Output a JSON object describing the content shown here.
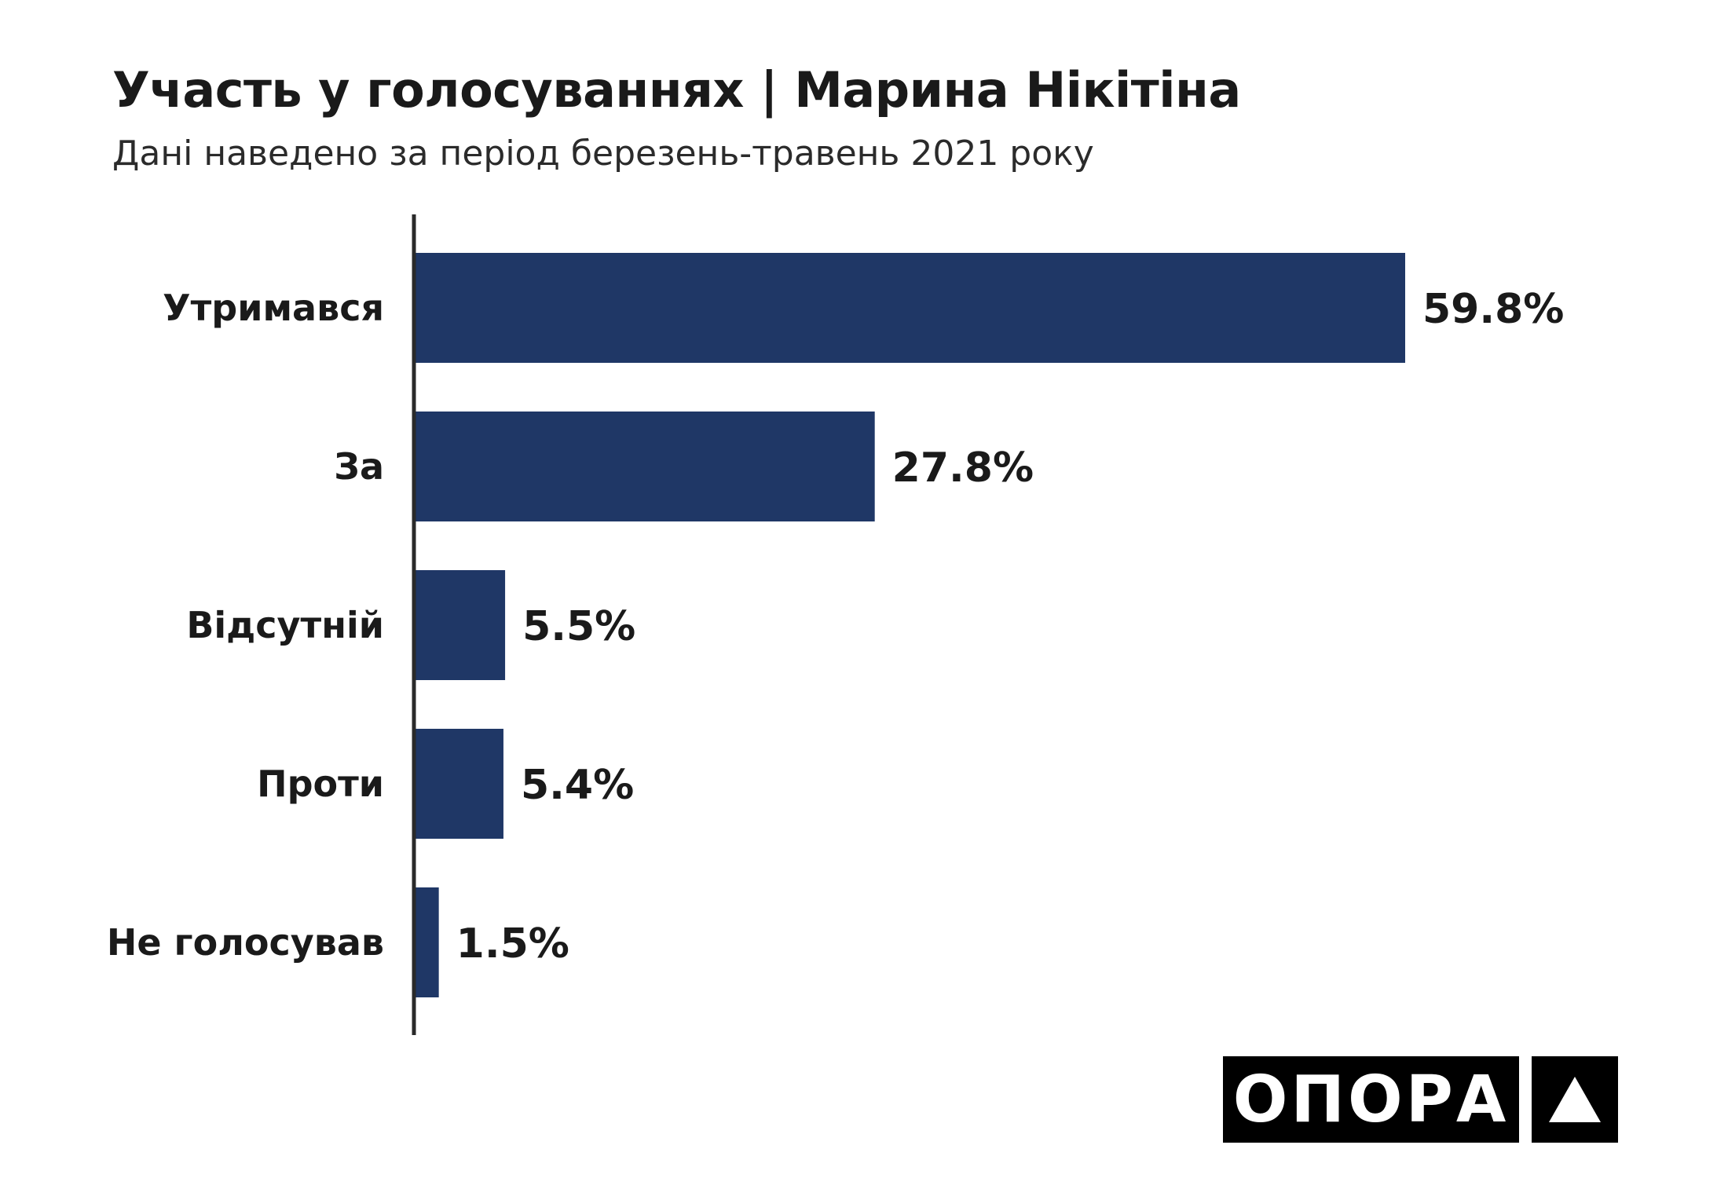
{
  "header": {
    "title": "Участь у голосуваннях | Марина Нікітіна",
    "subtitle": "Дані наведено за період березень-травень 2021 року"
  },
  "chart_data": {
    "type": "bar",
    "orientation": "horizontal",
    "categories": [
      "Утримався",
      "За",
      "Відсутній",
      "Проти",
      "Не голосував"
    ],
    "values": [
      59.8,
      27.8,
      5.5,
      5.4,
      1.5
    ],
    "value_labels": [
      "59.8%",
      "27.8%",
      "5.5%",
      "5.4%",
      "1.5%"
    ],
    "unit": "%",
    "xlim": [
      0,
      60
    ],
    "bar_color": "#1f3766",
    "grid": false,
    "legend": "none"
  },
  "logo": {
    "text": "ОПОРА",
    "icon": "triangle-icon"
  }
}
